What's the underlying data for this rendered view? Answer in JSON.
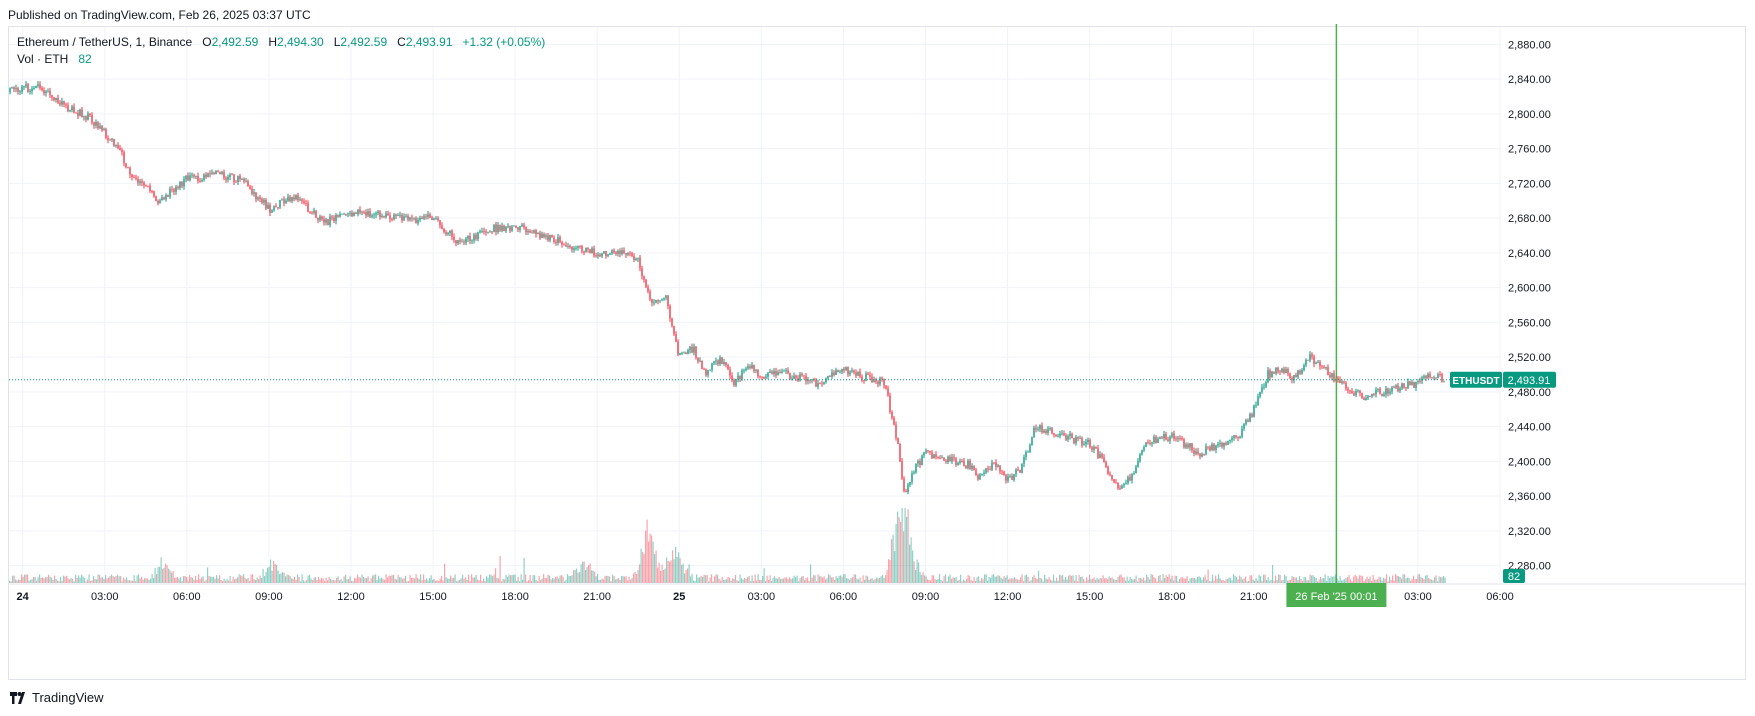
{
  "published": "Published on TradingView.com, Feb 26, 2025 03:37 UTC",
  "legend": {
    "symbol": "Ethereum / TetherUS, 1, Binance",
    "o_label": "O",
    "o_val": "2,492.59",
    "h_label": "H",
    "h_val": "2,494.30",
    "l_label": "L",
    "l_val": "2,492.59",
    "c_label": "C",
    "c_val": "2,493.91",
    "change": "+1.32 (+0.05%)",
    "vol_label": "Vol · ETH",
    "vol_val": "82"
  },
  "brand": "TradingView",
  "colors": {
    "up": "#089981",
    "down": "#f23645",
    "grid": "#f0f3fa",
    "cursor": "#4caf50",
    "price_tag": "#089981"
  },
  "chart_data": {
    "type": "candlestick",
    "symbol": "ETHUSDT",
    "interval": "1 minute",
    "last_price": 2493.91,
    "last_price_label": "2,493.91",
    "symbol_tag": "ETHUSDT",
    "volume_tag": "82",
    "ylim": [
      2260,
      2900
    ],
    "y_ticks": [
      2880,
      2840,
      2800,
      2760,
      2720,
      2680,
      2640,
      2600,
      2560,
      2520,
      2480,
      2440,
      2400,
      2360,
      2320,
      2280
    ],
    "y_tick_labels": [
      "2,880.00",
      "2,840.00",
      "2,800.00",
      "2,760.00",
      "2,720.00",
      "2,680.00",
      "2,640.00",
      "2,600.00",
      "2,560.00",
      "2,520.00",
      "2,480.00",
      "2,440.00",
      "2,400.00",
      "2,360.00",
      "2,320.00",
      "2,280.00"
    ],
    "x_range_hours": [
      -0.5,
      54
    ],
    "x_ticks": [
      {
        "h": 0,
        "label": "24",
        "bold": true
      },
      {
        "h": 3,
        "label": "03:00"
      },
      {
        "h": 6,
        "label": "06:00"
      },
      {
        "h": 9,
        "label": "09:00"
      },
      {
        "h": 12,
        "label": "12:00"
      },
      {
        "h": 15,
        "label": "15:00"
      },
      {
        "h": 18,
        "label": "18:00"
      },
      {
        "h": 21,
        "label": "21:00"
      },
      {
        "h": 24,
        "label": "25",
        "bold": true
      },
      {
        "h": 27,
        "label": "03:00"
      },
      {
        "h": 30,
        "label": "06:00"
      },
      {
        "h": 33,
        "label": "09:00"
      },
      {
        "h": 36,
        "label": "12:00"
      },
      {
        "h": 39,
        "label": "15:00"
      },
      {
        "h": 42,
        "label": "18:00"
      },
      {
        "h": 45,
        "label": "21:00"
      },
      {
        "h": 51,
        "label": "03:00"
      },
      {
        "h": 54,
        "label": "06:00"
      }
    ],
    "cursor": {
      "h": 48.02,
      "label": "26 Feb '25   00:01"
    },
    "price_path": [
      [
        -0.5,
        2825
      ],
      [
        0.5,
        2832
      ],
      [
        1.5,
        2810
      ],
      [
        2.5,
        2795
      ],
      [
        3.5,
        2760
      ],
      [
        4,
        2725
      ],
      [
        4.5,
        2715
      ],
      [
        5,
        2700
      ],
      [
        6,
        2725
      ],
      [
        7,
        2730
      ],
      [
        8,
        2725
      ],
      [
        9,
        2690
      ],
      [
        10,
        2705
      ],
      [
        11,
        2675
      ],
      [
        12,
        2685
      ],
      [
        13,
        2685
      ],
      [
        14,
        2678
      ],
      [
        15,
        2680
      ],
      [
        16,
        2650
      ],
      [
        17,
        2668
      ],
      [
        18,
        2670
      ],
      [
        19,
        2660
      ],
      [
        20,
        2648
      ],
      [
        21,
        2640
      ],
      [
        22,
        2640
      ],
      [
        22.5,
        2630
      ],
      [
        23,
        2580
      ],
      [
        23.5,
        2590
      ],
      [
        24,
        2520
      ],
      [
        24.5,
        2530
      ],
      [
        25,
        2500
      ],
      [
        25.5,
        2520
      ],
      [
        26,
        2490
      ],
      [
        26.5,
        2510
      ],
      [
        27,
        2500
      ],
      [
        28,
        2500
      ],
      [
        29,
        2490
      ],
      [
        30,
        2505
      ],
      [
        31,
        2495
      ],
      [
        31.5,
        2490
      ],
      [
        32,
        2420
      ],
      [
        32.2,
        2360
      ],
      [
        32.6,
        2390
      ],
      [
        33,
        2410
      ],
      [
        34,
        2400
      ],
      [
        34.7,
        2395
      ],
      [
        35,
        2380
      ],
      [
        35.5,
        2400
      ],
      [
        36,
        2380
      ],
      [
        36.5,
        2390
      ],
      [
        37,
        2440
      ],
      [
        38,
        2430
      ],
      [
        39,
        2420
      ],
      [
        39.5,
        2400
      ],
      [
        40,
        2370
      ],
      [
        40.5,
        2380
      ],
      [
        41,
        2420
      ],
      [
        42,
        2430
      ],
      [
        43,
        2410
      ],
      [
        44,
        2420
      ],
      [
        44.5,
        2430
      ],
      [
        45,
        2460
      ],
      [
        45.5,
        2500
      ],
      [
        46,
        2505
      ],
      [
        46.5,
        2495
      ],
      [
        47,
        2520
      ],
      [
        47.5,
        2510
      ],
      [
        48,
        2495
      ],
      [
        48.5,
        2480
      ],
      [
        49,
        2475
      ],
      [
        50,
        2482
      ],
      [
        51,
        2490
      ],
      [
        51.4,
        2500
      ],
      [
        52,
        2493.91
      ]
    ],
    "volume_spikes": [
      {
        "h": 22.8,
        "v": 0.8
      },
      {
        "h": 32.0,
        "v": 1.0
      },
      {
        "h": 32.3,
        "v": 0.7
      },
      {
        "h": 23.8,
        "v": 0.4
      },
      {
        "h": 20.5,
        "v": 0.3
      },
      {
        "h": 5.1,
        "v": 0.3
      },
      {
        "h": 9.1,
        "v": 0.25
      }
    ]
  }
}
